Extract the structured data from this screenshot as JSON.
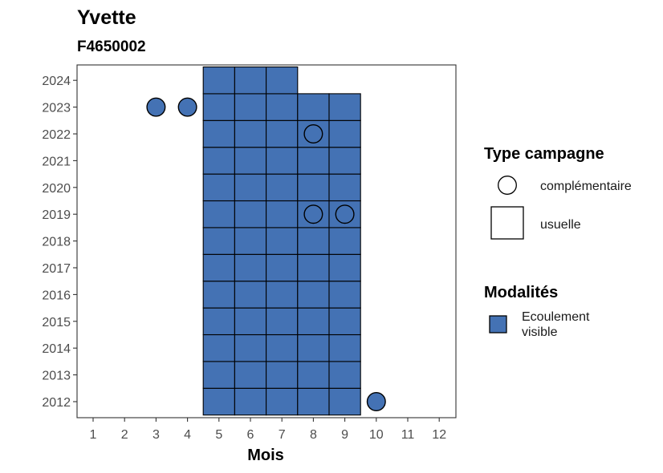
{
  "chart_data": {
    "type": "heatmap",
    "title": "Yvette",
    "subtitle": "F4650002",
    "xlabel": "Mois",
    "ylabel": "",
    "x_ticks": [
      1,
      2,
      3,
      4,
      5,
      6,
      7,
      8,
      9,
      10,
      11,
      12
    ],
    "y_ticks": [
      2012,
      2013,
      2014,
      2015,
      2016,
      2017,
      2018,
      2019,
      2020,
      2021,
      2022,
      2023,
      2024
    ],
    "xlim": [
      1,
      12
    ],
    "ylim": [
      2012,
      2024
    ],
    "grid": false,
    "fill_color": "#4472b4",
    "series": [
      {
        "name": "usuelle",
        "shape": "square",
        "points": [
          {
            "year": 2012,
            "months": [
              5,
              6,
              7,
              8,
              9
            ]
          },
          {
            "year": 2013,
            "months": [
              5,
              6,
              7,
              8,
              9
            ]
          },
          {
            "year": 2014,
            "months": [
              5,
              6,
              7,
              8,
              9
            ]
          },
          {
            "year": 2015,
            "months": [
              5,
              6,
              7,
              8,
              9
            ]
          },
          {
            "year": 2016,
            "months": [
              5,
              6,
              7,
              8,
              9
            ]
          },
          {
            "year": 2017,
            "months": [
              5,
              6,
              7,
              8,
              9
            ]
          },
          {
            "year": 2018,
            "months": [
              5,
              6,
              7,
              8,
              9
            ]
          },
          {
            "year": 2019,
            "months": [
              5,
              6,
              7,
              8,
              9
            ]
          },
          {
            "year": 2020,
            "months": [
              5,
              6,
              7,
              8,
              9
            ]
          },
          {
            "year": 2021,
            "months": [
              5,
              6,
              7,
              8,
              9
            ]
          },
          {
            "year": 2022,
            "months": [
              5,
              6,
              7,
              8,
              9
            ]
          },
          {
            "year": 2023,
            "months": [
              5,
              6,
              7,
              8,
              9
            ]
          },
          {
            "year": 2024,
            "months": [
              5,
              6,
              7
            ]
          }
        ]
      },
      {
        "name": "complémentaire",
        "shape": "circle",
        "points": [
          {
            "year": 2023,
            "month": 3,
            "filled": true
          },
          {
            "year": 2023,
            "month": 4,
            "filled": true
          },
          {
            "year": 2022,
            "month": 8,
            "filled": false
          },
          {
            "year": 2019,
            "month": 8,
            "filled": false
          },
          {
            "year": 2019,
            "month": 9,
            "filled": false
          },
          {
            "year": 2012,
            "month": 10,
            "filled": true
          }
        ]
      }
    ],
    "legend": {
      "placement": "right",
      "type_title": "Type campagne",
      "type_items": [
        {
          "label": "complémentaire",
          "shape": "circle"
        },
        {
          "label": "usuelle",
          "shape": "square"
        }
      ],
      "modalites_title": "Modalités",
      "modalites_items": [
        {
          "label_lines": [
            "Ecoulement",
            "visible"
          ],
          "color": "#4472b4"
        }
      ]
    }
  }
}
